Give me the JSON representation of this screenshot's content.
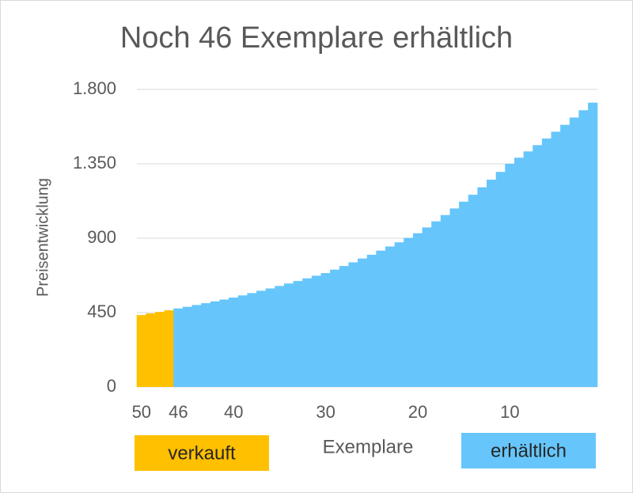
{
  "chart_data": {
    "type": "bar",
    "title": "Noch 46 Exemplare erhältlich",
    "x_label": "Exemplare",
    "y_label": "Preisentwicklung",
    "categories": [
      50,
      null,
      null,
      null,
      46,
      null,
      null,
      null,
      null,
      null,
      40,
      null,
      null,
      null,
      null,
      null,
      null,
      null,
      null,
      null,
      30,
      null,
      null,
      null,
      null,
      null,
      null,
      null,
      null,
      null,
      20,
      null,
      null,
      null,
      null,
      null,
      null,
      null,
      null,
      null,
      10,
      null,
      null,
      null,
      null,
      null,
      null,
      null,
      null,
      null
    ],
    "series": [
      {
        "name": "verkauft",
        "color": "#ffc000",
        "values": [
          435,
          445,
          454,
          464,
          null,
          null,
          null,
          null,
          null,
          null,
          null,
          null,
          null,
          null,
          null,
          null,
          null,
          null,
          null,
          null,
          null,
          null,
          null,
          null,
          null,
          null,
          null,
          null,
          null,
          null,
          null,
          null,
          null,
          null,
          null,
          null,
          null,
          null,
          null,
          null,
          null,
          null,
          null,
          null,
          null,
          null,
          null,
          null,
          null,
          null
        ]
      },
      {
        "name": "erhältlich",
        "color": "#66c6fb",
        "values": [
          null,
          null,
          null,
          null,
          475,
          485,
          496,
          507,
          518,
          529,
          541,
          554,
          568,
          582,
          596,
          611,
          626,
          641,
          657,
          673,
          689,
          710,
          732,
          754,
          777,
          800,
          825,
          850,
          875,
          902,
          930,
          965,
          1002,
          1040,
          1080,
          1121,
          1163,
          1208,
          1254,
          1301,
          1350,
          1387,
          1425,
          1463,
          1503,
          1544,
          1586,
          1630,
          1674,
          1720
        ]
      }
    ],
    "ylim": [
      0,
      1800
    ],
    "yticks": [
      0,
      450,
      900,
      {
        "value": 1350,
        "label": "1.350"
      },
      {
        "value": 1800,
        "label": "1.800"
      }
    ],
    "grid": true
  }
}
